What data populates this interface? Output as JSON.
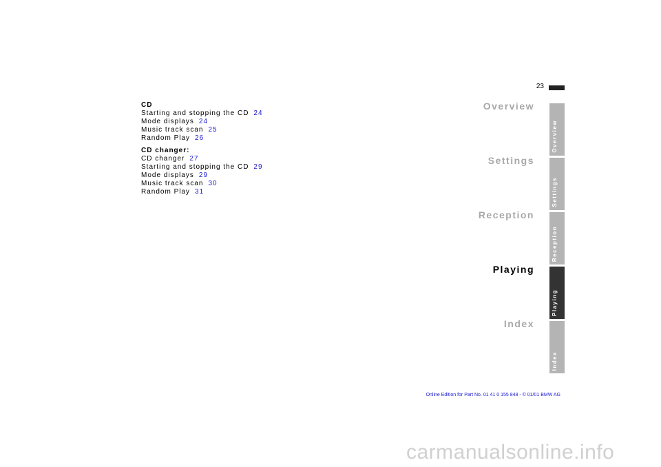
{
  "header": {
    "page_number": "23"
  },
  "sections": [
    {
      "title": "CD",
      "items": [
        {
          "label": "Starting and stopping the CD",
          "page": "24"
        },
        {
          "label": "Mode displays",
          "page": "24"
        },
        {
          "label": "Music track scan",
          "page": "25"
        },
        {
          "label": "Random Play",
          "page": "26"
        }
      ]
    },
    {
      "title": "CD changer:",
      "items": [
        {
          "label": "CD changer",
          "page": "27"
        },
        {
          "label": "Starting and stopping the CD",
          "page": "29"
        },
        {
          "label": "Mode displays",
          "page": "29"
        },
        {
          "label": "Music track scan",
          "page": "30"
        },
        {
          "label": "Random Play",
          "page": "31"
        }
      ]
    }
  ],
  "nav": {
    "labels": [
      "Overview",
      "Settings",
      "Reception",
      "Playing",
      "Index"
    ],
    "tabs": [
      "Overview",
      "Settings",
      "Reception",
      "Playing",
      "Index"
    ]
  },
  "footer": "Online Edition for Part No. 01 41 0 155 848 - © 01/01 BMW AG",
  "watermark": "carmanualsonline.info"
}
